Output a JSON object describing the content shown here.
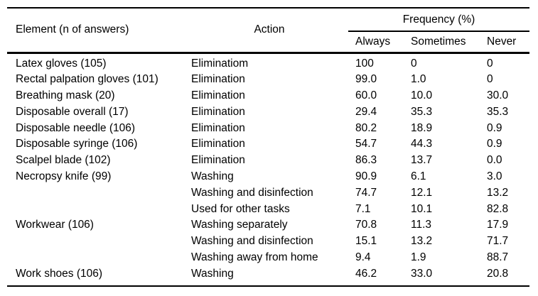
{
  "colors": {
    "background": "#ffffff",
    "text": "#000000",
    "rule": "#000000"
  },
  "table": {
    "header": {
      "element": "Element (n of answers)",
      "action": "Action",
      "frequency_group": "Frequency (%)",
      "always": "Always",
      "sometimes": "Sometimes",
      "never": "Never"
    },
    "rows": [
      {
        "element": "Latex gloves (105)",
        "action": "Eliminatiom",
        "always": "100",
        "sometimes": "0",
        "never": "0"
      },
      {
        "element": "Rectal palpation gloves (101)",
        "action": "Elimination",
        "always": "99.0",
        "sometimes": "1.0",
        "never": "0"
      },
      {
        "element": "Breathing mask (20)",
        "action": "Elimination",
        "always": "60.0",
        "sometimes": "10.0",
        "never": "30.0"
      },
      {
        "element": "Disposable overall (17)",
        "action": "Elimination",
        "always": "29.4",
        "sometimes": "35.3",
        "never": "35.3"
      },
      {
        "element": "Disposable needle (106)",
        "action": "Elimination",
        "always": "80.2",
        "sometimes": "18.9",
        "never": "0.9"
      },
      {
        "element": "Disposable syringe (106)",
        "action": "Elimination",
        "always": "54.7",
        "sometimes": "44.3",
        "never": "0.9"
      },
      {
        "element": "Scalpel blade (102)",
        "action": "Elimination",
        "always": "86.3",
        "sometimes": "13.7",
        "never": "0.0"
      },
      {
        "element": "Necropsy knife (99)",
        "action": "Washing",
        "always": "90.9",
        "sometimes": "6.1",
        "never": "3.0"
      },
      {
        "element": "",
        "action": "Washing and disinfection",
        "always": "74.7",
        "sometimes": "12.1",
        "never": "13.2"
      },
      {
        "element": "",
        "action": "Used for other tasks",
        "always": "7.1",
        "sometimes": "10.1",
        "never": "82.8"
      },
      {
        "element": "Workwear (106)",
        "action": "Washing separately",
        "always": "70.8",
        "sometimes": "11.3",
        "never": "17.9"
      },
      {
        "element": "",
        "action": "Washing and disinfection",
        "always": "15.1",
        "sometimes": "13.2",
        "never": "71.7"
      },
      {
        "element": "",
        "action": "Washing away from home",
        "always": "9.4",
        "sometimes": "1.9",
        "never": "88.7"
      },
      {
        "element": "Work shoes (106)",
        "action": "Washing",
        "always": "46.2",
        "sometimes": "33.0",
        "never": "20.8"
      }
    ]
  }
}
